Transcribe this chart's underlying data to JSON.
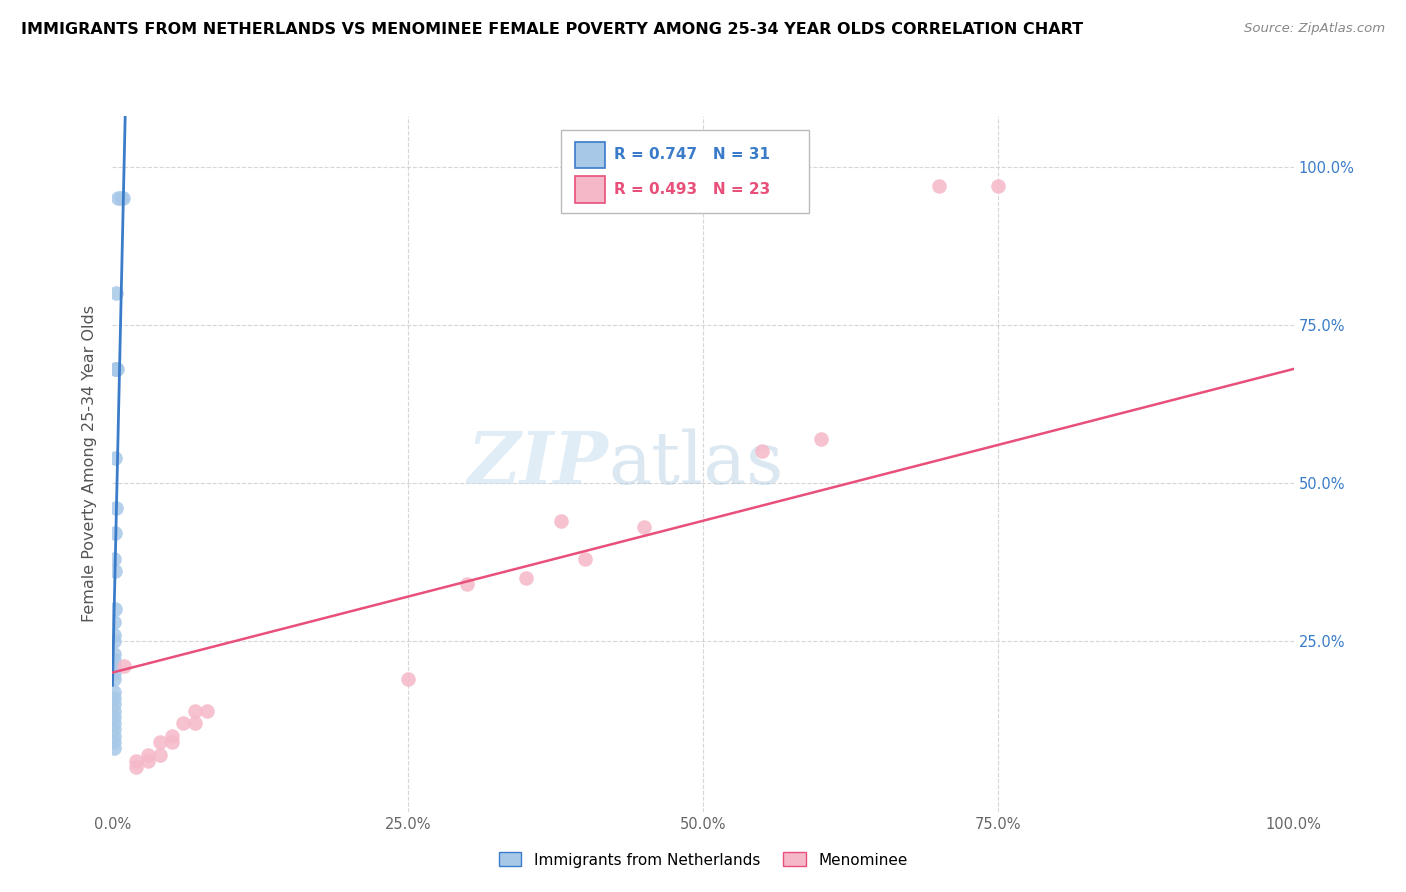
{
  "title": "IMMIGRANTS FROM NETHERLANDS VS MENOMINEE FEMALE POVERTY AMONG 25-34 YEAR OLDS CORRELATION CHART",
  "source": "Source: ZipAtlas.com",
  "ylabel": "Female Poverty Among 25-34 Year Olds",
  "xlim": [
    0.0,
    1.0
  ],
  "ylim": [
    -0.02,
    1.08
  ],
  "xtick_labels": [
    "0.0%",
    "25.0%",
    "50.0%",
    "75.0%",
    "100.0%"
  ],
  "xtick_positions": [
    0.0,
    0.25,
    0.5,
    0.75,
    1.0
  ],
  "ytick_labels": [
    "25.0%",
    "50.0%",
    "75.0%",
    "100.0%"
  ],
  "ytick_positions": [
    0.25,
    0.5,
    0.75,
    1.0
  ],
  "blue_R": "0.747",
  "blue_N": "31",
  "pink_R": "0.493",
  "pink_N": "23",
  "blue_color": "#a8c8e8",
  "pink_color": "#f5b8c8",
  "blue_line_color": "#3a7cc9",
  "pink_line_color": "#e8507a",
  "legend_blue_label": "Immigrants from Netherlands",
  "legend_pink_label": "Menominee",
  "watermark_zip": "ZIP",
  "watermark_atlas": "atlas",
  "blue_scatter_x": [
    0.005,
    0.007,
    0.009,
    0.003,
    0.002,
    0.003,
    0.004,
    0.002,
    0.003,
    0.002,
    0.001,
    0.002,
    0.002,
    0.001,
    0.001,
    0.001,
    0.001,
    0.001,
    0.001,
    0.001,
    0.001,
    0.001,
    0.001,
    0.001,
    0.001,
    0.001,
    0.001,
    0.001,
    0.001,
    0.001,
    0.001
  ],
  "blue_scatter_y": [
    0.95,
    0.95,
    0.95,
    0.8,
    0.68,
    0.68,
    0.68,
    0.54,
    0.46,
    0.42,
    0.38,
    0.36,
    0.3,
    0.28,
    0.26,
    0.25,
    0.23,
    0.22,
    0.21,
    0.2,
    0.19,
    0.17,
    0.16,
    0.15,
    0.14,
    0.13,
    0.12,
    0.11,
    0.1,
    0.09,
    0.08
  ],
  "pink_scatter_x": [
    0.7,
    0.75,
    0.6,
    0.55,
    0.45,
    0.4,
    0.38,
    0.35,
    0.3,
    0.25,
    0.07,
    0.08,
    0.06,
    0.07,
    0.05,
    0.04,
    0.05,
    0.03,
    0.04,
    0.02,
    0.03,
    0.02,
    0.01
  ],
  "pink_scatter_y": [
    0.97,
    0.97,
    0.57,
    0.55,
    0.43,
    0.38,
    0.44,
    0.35,
    0.34,
    0.19,
    0.14,
    0.14,
    0.12,
    0.12,
    0.1,
    0.09,
    0.09,
    0.07,
    0.07,
    0.06,
    0.06,
    0.05,
    0.21
  ],
  "blue_trendline_x": [
    0.0,
    0.011
  ],
  "blue_trendline_y": [
    0.18,
    1.1
  ],
  "pink_trendline_x": [
    0.0,
    1.0
  ],
  "pink_trendline_y": [
    0.2,
    0.68
  ]
}
